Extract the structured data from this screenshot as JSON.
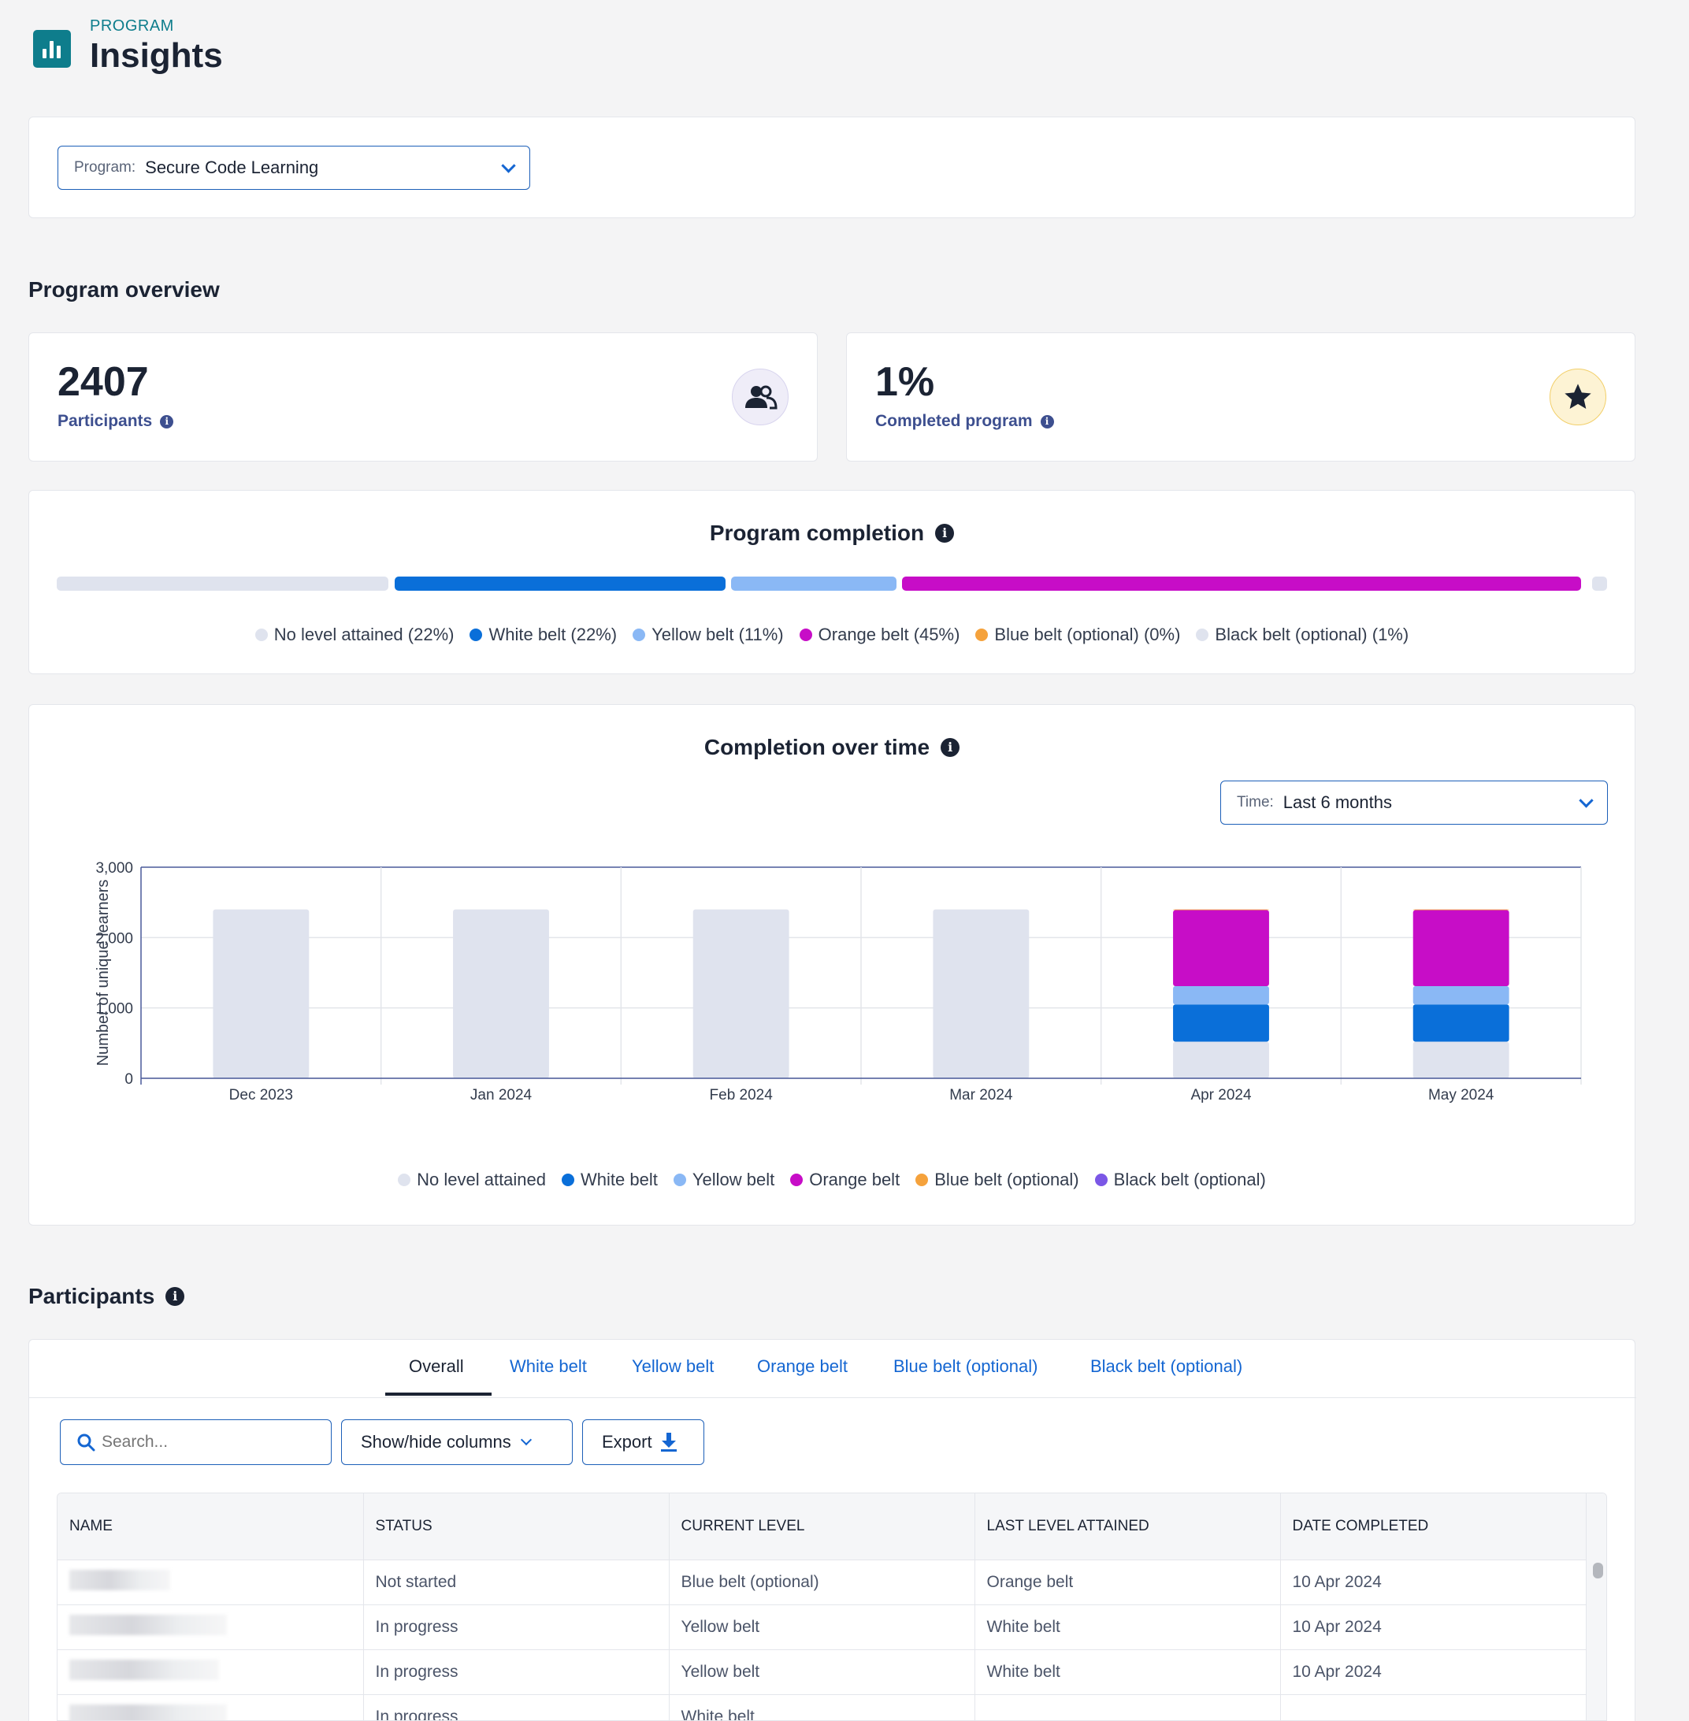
{
  "header": {
    "eyebrow": "PROGRAM",
    "title": "Insights"
  },
  "program_select": {
    "label": "Program:",
    "value": "Secure Code Learning"
  },
  "overview": {
    "title": "Program overview",
    "participants": {
      "value": "2407",
      "label": "Participants"
    },
    "completed": {
      "value": "1%",
      "label": "Completed program"
    }
  },
  "program_completion": {
    "title": "Program completion",
    "legend": [
      {
        "label": "No level attained (22%)",
        "color": "#dfe3ee"
      },
      {
        "label": "White belt (22%)",
        "color": "#0a6fd9"
      },
      {
        "label": "Yellow belt (11%)",
        "color": "#8ab8f5"
      },
      {
        "label": "Orange belt (45%)",
        "color": "#c70dc7"
      },
      {
        "label": "Blue belt (optional) (0%)",
        "color": "#f5a23c"
      },
      {
        "label": "Black belt (optional) (1%)",
        "color": "#dfe3ee"
      }
    ]
  },
  "completion_over_time": {
    "title": "Completion over time",
    "time_select": {
      "label": "Time:",
      "value": "Last 6 months"
    },
    "legend": [
      {
        "label": "No level attained",
        "color": "#dfe3ee"
      },
      {
        "label": "White belt",
        "color": "#0a6fd9"
      },
      {
        "label": "Yellow belt",
        "color": "#8ab8f5"
      },
      {
        "label": "Orange belt",
        "color": "#c70dc7"
      },
      {
        "label": "Blue belt (optional)",
        "color": "#f5a23c"
      },
      {
        "label": "Black belt (optional)",
        "color": "#7b57e6"
      }
    ]
  },
  "chart_data": {
    "type": "bar",
    "stacked": true,
    "title": "",
    "xlabel": "",
    "ylabel": "Number of unique learners",
    "ylim": [
      0,
      3000
    ],
    "yticks": [
      "0",
      "1,000",
      "2,000",
      "3,000"
    ],
    "categories": [
      "Dec 2023",
      "Jan 2024",
      "Feb 2024",
      "Mar 2024",
      "Apr 2024",
      "May 2024"
    ],
    "series": [
      {
        "name": "No level attained",
        "color": "#dfe3ee",
        "values": [
          2400,
          2400,
          2400,
          2400,
          520,
          520
        ]
      },
      {
        "name": "White belt",
        "color": "#0a6fd9",
        "values": [
          0,
          0,
          0,
          0,
          530,
          530
        ]
      },
      {
        "name": "Yellow belt",
        "color": "#8ab8f5",
        "values": [
          0,
          0,
          0,
          0,
          260,
          260
        ]
      },
      {
        "name": "Orange belt",
        "color": "#c70dc7",
        "values": [
          0,
          0,
          0,
          0,
          1080,
          1080
        ]
      },
      {
        "name": "Blue belt (optional)",
        "color": "#f5a23c",
        "values": [
          0,
          0,
          0,
          0,
          10,
          10
        ]
      },
      {
        "name": "Black belt (optional)",
        "color": "#7b57e6",
        "values": [
          0,
          0,
          0,
          0,
          0,
          0
        ]
      }
    ],
    "grid": true,
    "legend_position": "bottom"
  },
  "participants_section": {
    "title": "Participants",
    "tabs": [
      "Overall",
      "White belt",
      "Yellow belt",
      "Orange belt",
      "Blue belt (optional)",
      "Black belt (optional)"
    ],
    "search_placeholder": "Search...",
    "columns_button": "Show/hide columns",
    "export_button": "Export",
    "columns": [
      "NAME",
      "STATUS",
      "CURRENT LEVEL",
      "LAST LEVEL ATTAINED",
      "DATE COMPLETED"
    ],
    "rows": [
      {
        "status": "Not started",
        "current": "Blue belt (optional)",
        "last": "Orange belt",
        "date": "10 Apr 2024"
      },
      {
        "status": "In progress",
        "current": "Yellow belt",
        "last": "White belt",
        "date": "10 Apr 2024"
      },
      {
        "status": "In progress",
        "current": "Yellow belt",
        "last": "White belt",
        "date": "10 Apr 2024"
      },
      {
        "status": "In progress",
        "current": "White belt",
        "last": "",
        "date": ""
      }
    ]
  }
}
